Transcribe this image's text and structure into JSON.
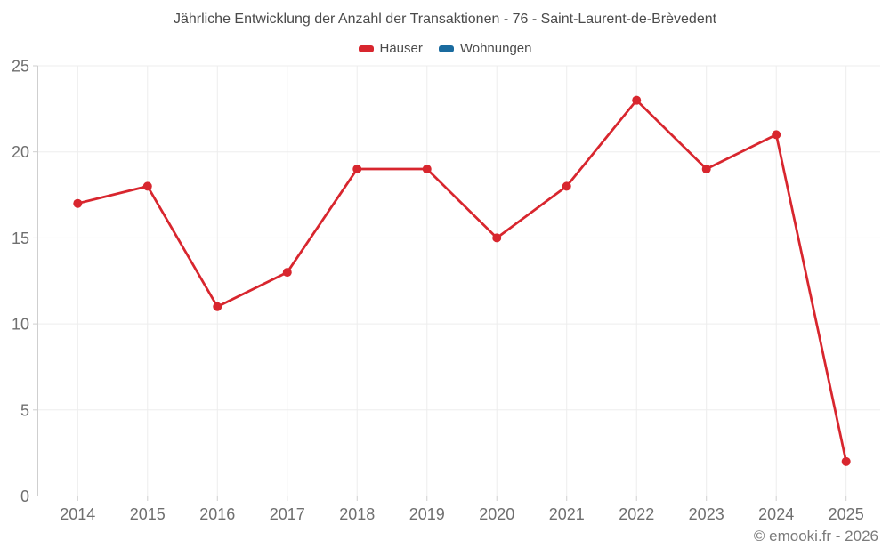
{
  "chart_data": {
    "type": "line",
    "title": "Jährliche Entwicklung der Anzahl der Transaktionen - 76 - Saint-Laurent-de-Brèvedent",
    "xlabel": "",
    "ylabel": "",
    "categories": [
      "2014",
      "2015",
      "2016",
      "2017",
      "2018",
      "2019",
      "2020",
      "2021",
      "2022",
      "2023",
      "2024",
      "2025"
    ],
    "series": [
      {
        "name": "Häuser",
        "color": "#d8262e",
        "values": [
          17,
          18,
          11,
          13,
          19,
          19,
          15,
          18,
          23,
          19,
          21,
          2
        ]
      },
      {
        "name": "Wohnungen",
        "color": "#1a6b9f",
        "values": []
      }
    ],
    "ylim": [
      0,
      25
    ],
    "yticks": [
      0,
      5,
      10,
      15,
      20,
      25
    ],
    "grid": true,
    "legend_position": "top"
  },
  "footer": {
    "copyright": "© emooki.fr - 2026"
  }
}
